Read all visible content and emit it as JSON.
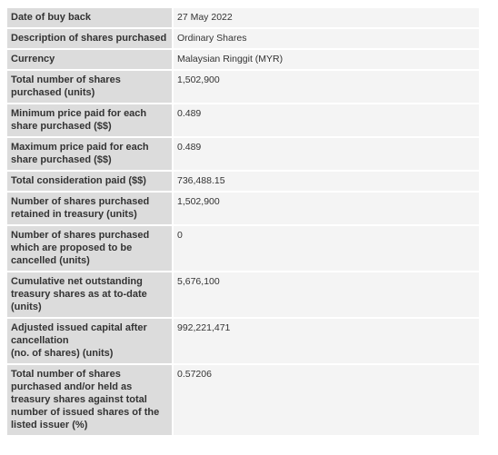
{
  "rows": [
    {
      "label": "Date of buy back",
      "value": "27 May 2022"
    },
    {
      "label": "Description of shares purchased",
      "value": "Ordinary Shares"
    },
    {
      "label": "Currency",
      "value": "Malaysian Ringgit (MYR)"
    },
    {
      "label": "Total number of shares purchased (units)",
      "value": "1,502,900"
    },
    {
      "label": "Minimum price paid for each share purchased ($$)",
      "value": "0.489"
    },
    {
      "label": "Maximum price paid for each share purchased ($$)",
      "value": "0.489"
    },
    {
      "label": "Total consideration paid ($$)",
      "value": "736,488.15"
    },
    {
      "label": "Number of shares purchased retained in treasury (units)",
      "value": "1,502,900"
    },
    {
      "label": "Number of shares purchased which are proposed to be cancelled (units)",
      "value": "0"
    },
    {
      "label": "Cumulative net outstanding treasury shares as at to-date (units)",
      "value": "5,676,100"
    },
    {
      "label": "Adjusted issued capital after cancellation\n(no. of shares) (units)",
      "value": "992,221,471"
    },
    {
      "label": "Total number of shares purchased and/or held as treasury shares against total number of issued shares of the listed issuer (%)",
      "value": "0.57206"
    }
  ]
}
